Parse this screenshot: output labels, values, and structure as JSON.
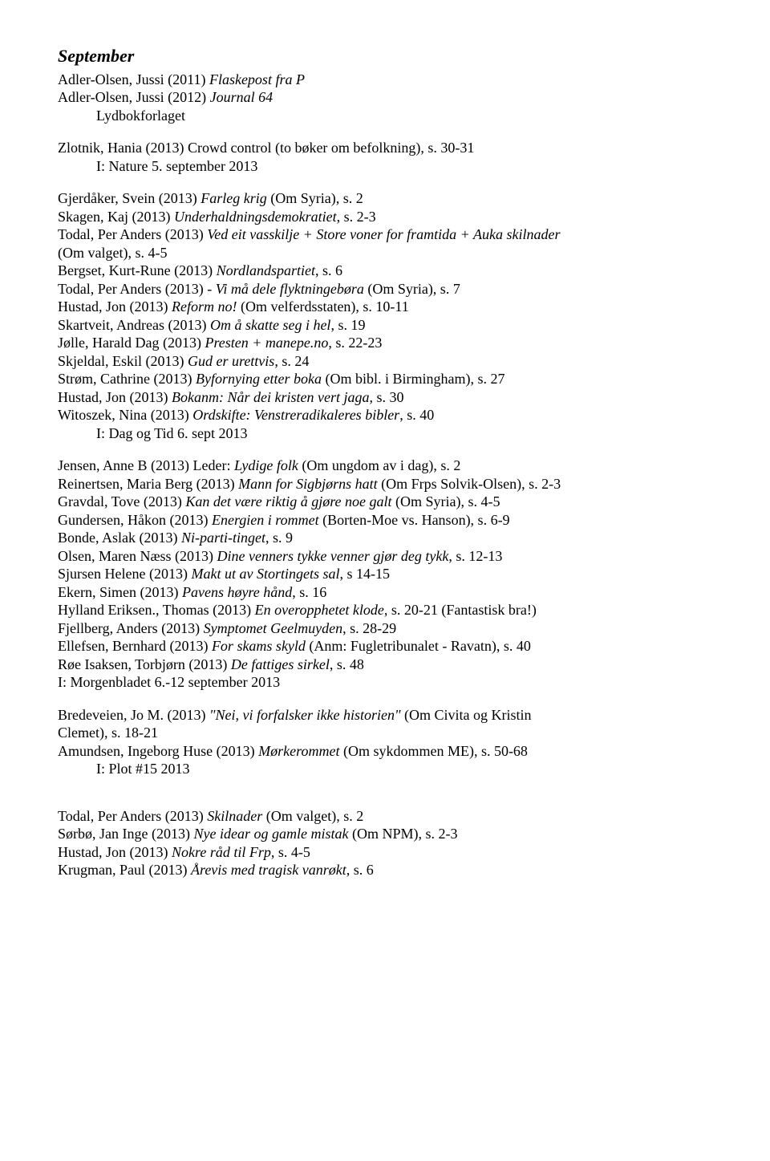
{
  "heading": "September",
  "block1": [
    {
      "pre": "Adler-Olsen, Jussi (2011) ",
      "ital": "Flaskepost fra P",
      "post": ""
    },
    {
      "pre": "Adler-Olsen, Jussi (2012) ",
      "ital": "Journal 64",
      "post": ""
    },
    {
      "indent": true,
      "pre": "Lydbokforlaget",
      "ital": "",
      "post": ""
    }
  ],
  "block2": [
    {
      "pre": "Zlotnik, Hania (2013) Crowd control (to bøker om befolkning), s. 30-31",
      "ital": "",
      "post": ""
    },
    {
      "indent": true,
      "pre": "I: Nature 5. september 2013",
      "ital": "",
      "post": ""
    }
  ],
  "block3": [
    {
      "pre": "Gjerdåker, Svein (2013) ",
      "ital": "Farleg krig",
      "post": " (Om Syria), s. 2"
    },
    {
      "pre": "Skagen, Kaj (2013) ",
      "ital": "Underhaldningsdemokratiet",
      "post": ", s. 2-3"
    },
    {
      "pre": "Todal, Per Anders (2013) ",
      "ital": "Ved eit vasskilje + Store voner for framtida + Auka skilnader",
      "post": ""
    },
    {
      "pre": "(Om valget), s. 4-5",
      "ital": "",
      "post": ""
    },
    {
      "pre": "Bergset, Kurt-Rune (2013) ",
      "ital": "Nordlandspartiet",
      "post": ", s. 6"
    },
    {
      "pre": "Todal, Per Anders (2013) - ",
      "ital": "Vi må dele flyktningebøra",
      "post": " (Om Syria), s. 7"
    },
    {
      "pre": "Hustad, Jon (2013) ",
      "ital": "Reform no!",
      "post": " (Om velferdsstaten), s. 10-11"
    },
    {
      "pre": "Skartveit, Andreas (2013) ",
      "ital": "Om å skatte seg i hel",
      "post": ", s. 19"
    },
    {
      "pre": "Jølle, Harald Dag (2013) ",
      "ital": "Presten + manepe.no",
      "post": ", s. 22-23"
    },
    {
      "pre": "Skjeldal, Eskil (2013) ",
      "ital": "Gud er urettvis",
      "post": ", s. 24"
    },
    {
      "pre": "Strøm, Cathrine (2013) ",
      "ital": "Byfornying etter boka",
      "post": " (Om bibl. i Birmingham), s. 27"
    },
    {
      "pre": "Hustad, Jon (2013) ",
      "ital": "Bokanm: Når dei kristen vert jaga",
      "post": ", s. 30"
    },
    {
      "pre": "Witoszek, Nina (2013) ",
      "ital": "Ordskifte: Venstreradikaleres bibler",
      "post": ", s. 40"
    },
    {
      "indent": true,
      "pre": "I: Dag og Tid 6. sept 2013",
      "ital": "",
      "post": ""
    }
  ],
  "block4": [
    {
      "pre": "Jensen, Anne B (2013) Leder: ",
      "ital": "Lydige folk",
      "post": " (Om ungdom av i dag), s. 2"
    },
    {
      "pre": "Reinertsen, Maria Berg (2013) ",
      "ital": "Mann for Sigbjørns hatt",
      "post": " (Om Frps Solvik-Olsen), s. 2-3"
    },
    {
      "pre": "Gravdal, Tove (2013) ",
      "ital": "Kan det være riktig å gjøre noe galt",
      "post": " (Om Syria), s. 4-5"
    },
    {
      "pre": "Gundersen, Håkon (2013) ",
      "ital": "Energien i rommet",
      "post": " (Borten-Moe vs. Hanson), s. 6-9"
    },
    {
      "pre": "Bonde, Aslak (2013) ",
      "ital": "Ni-parti-tinget",
      "post": ", s. 9"
    },
    {
      "pre": "Olsen, Maren Næss (2013) ",
      "ital": "Dine venners tykke venner gjør deg tykk",
      "post": ", s. 12-13"
    },
    {
      "pre": "Sjursen Helene (2013) ",
      "ital": "Makt ut av Stortingets sal",
      "post": ", s 14-15"
    },
    {
      "pre": "Ekern, Simen (2013) ",
      "ital": "Pavens høyre hånd",
      "post": ", s. 16"
    },
    {
      "pre": "Hylland Eriksen., Thomas (2013) ",
      "ital": "En overopphetet klode",
      "post": ", s. 20-21 (Fantastisk bra!)"
    },
    {
      "pre": "Fjellberg, Anders (2013) ",
      "ital": "Symptomet Geelmuyden",
      "post": ", s. 28-29"
    },
    {
      "pre": "Ellefsen, Bernhard (2013) ",
      "ital": "For skams skyld",
      "post": " (Anm: Fugletribunalet - Ravatn), s. 40"
    },
    {
      "pre": "Røe Isaksen, Torbjørn (2013) ",
      "ital": "De fattiges sirkel",
      "post": ", s. 48"
    },
    {
      "pre": "I: Morgenbladet 6.-12 september 2013",
      "ital": "",
      "post": ""
    }
  ],
  "block5": [
    {
      "pre": "Bredeveien, Jo M. (2013) ",
      "ital": "\"Nei, vi forfalsker ikke historien\"",
      "post": " (Om Civita og Kristin"
    },
    {
      "pre": "Clemet), s. 18-21",
      "ital": "",
      "post": ""
    },
    {
      "pre": "Amundsen, Ingeborg Huse (2013) ",
      "ital": "Mørkerommet",
      "post": " (Om sykdommen ME), s. 50-68"
    },
    {
      "indent": true,
      "pre": "I: Plot #15 2013",
      "ital": "",
      "post": ""
    }
  ],
  "block6": [
    {
      "pre": "Todal, Per Anders (2013) ",
      "ital": "Skilnader",
      "post": " (Om valget), s. 2"
    },
    {
      "pre": "Sørbø, Jan Inge (2013) ",
      "ital": "Nye idear og gamle mistak",
      "post": " (Om NPM), s. 2-3"
    },
    {
      "pre": "Hustad, Jon (2013) ",
      "ital": "Nokre råd til Frp",
      "post": ", s. 4-5"
    },
    {
      "pre": "Krugman, Paul (2013) ",
      "ital": "Årevis med tragisk vanrøkt",
      "post": ", s. 6"
    }
  ]
}
